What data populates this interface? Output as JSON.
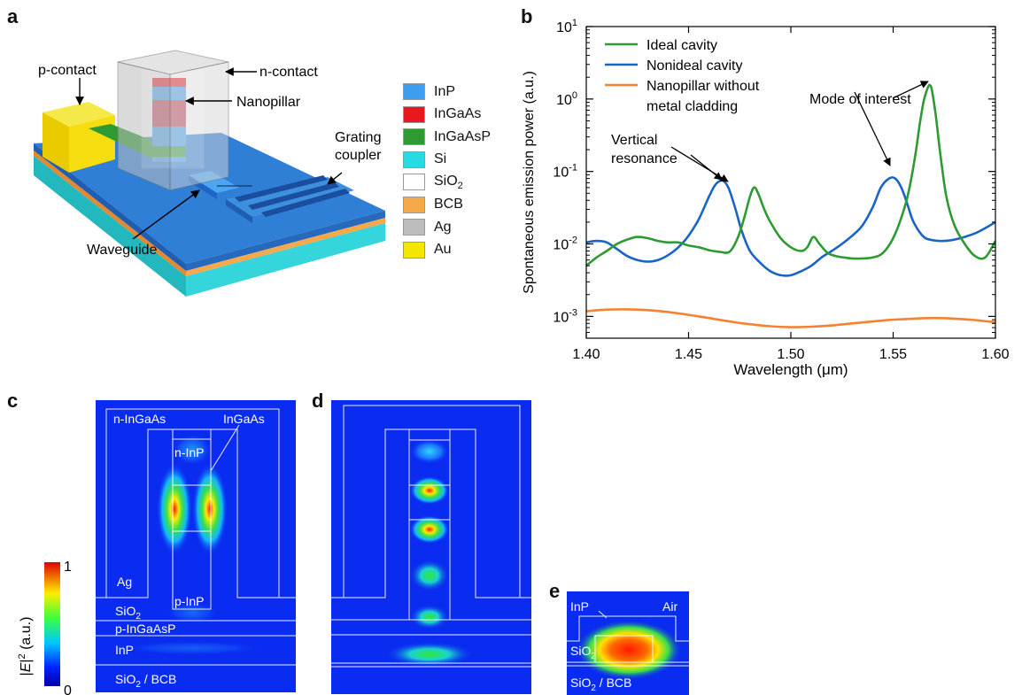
{
  "panels": {
    "a": "a",
    "b": "b",
    "c": "c",
    "d": "d",
    "e": "e"
  },
  "panel_a": {
    "labels": {
      "p_contact": "p-contact",
      "n_contact": "n-contact",
      "nanopillar": "Nanopillar",
      "grating_line1": "Grating",
      "grating_line2": "coupler",
      "waveguide": "Waveguide"
    },
    "materials": [
      {
        "name": "InP",
        "sub": "",
        "color": "#3d9ef0"
      },
      {
        "name": "InGaAs",
        "sub": "",
        "color": "#e8181e"
      },
      {
        "name": "InGaAsP",
        "sub": "",
        "color": "#2e9a32"
      },
      {
        "name": "Si",
        "sub": "",
        "color": "#27dbe2"
      },
      {
        "name": "SiO",
        "sub": "2",
        "color": "#ffffff"
      },
      {
        "name": "BCB",
        "sub": "",
        "color": "#f5a94a"
      },
      {
        "name": "Ag",
        "sub": "",
        "color": "#bdbdbd"
      },
      {
        "name": "Au",
        "sub": "",
        "color": "#f5e600"
      }
    ]
  },
  "chart_data": {
    "type": "line",
    "xlabel_pre": "Wavelength (",
    "xlabel_unit": "μm",
    "xlabel_post": ")",
    "ylabel": "Spontaneous emission power (a.u.)",
    "xlim": [
      1.4,
      1.6
    ],
    "ylim": [
      0.0005,
      10
    ],
    "yscale": "log",
    "x_ticks": [
      "1.40",
      "1.45",
      "1.50",
      "1.55",
      "1.60"
    ],
    "x_tick_values": [
      1.4,
      1.45,
      1.5,
      1.55,
      1.6
    ],
    "y_tick_exponents": [
      -3,
      -2,
      -1,
      0,
      1
    ],
    "y_tick_base": "10",
    "legend_position": "top-left",
    "series": [
      {
        "name": "Ideal cavity",
        "color": "#2e9a32",
        "x": [
          1.4,
          1.405,
          1.41,
          1.415,
          1.42,
          1.425,
          1.43,
          1.435,
          1.44,
          1.445,
          1.45,
          1.455,
          1.46,
          1.465,
          1.47,
          1.474,
          1.477,
          1.48,
          1.482,
          1.484,
          1.487,
          1.49,
          1.495,
          1.5,
          1.505,
          1.508,
          1.511,
          1.514,
          1.518,
          1.522,
          1.526,
          1.53,
          1.535,
          1.54,
          1.545,
          1.55,
          1.555,
          1.558,
          1.561,
          1.563,
          1.565,
          1.567,
          1.568,
          1.569,
          1.571,
          1.573,
          1.576,
          1.58,
          1.585,
          1.59,
          1.595,
          1.6
        ],
        "y": [
          0.005,
          0.0065,
          0.008,
          0.01,
          0.0115,
          0.0125,
          0.012,
          0.011,
          0.0105,
          0.0105,
          0.0095,
          0.009,
          0.0082,
          0.0078,
          0.0078,
          0.012,
          0.022,
          0.045,
          0.06,
          0.05,
          0.03,
          0.02,
          0.012,
          0.009,
          0.008,
          0.009,
          0.0125,
          0.01,
          0.0075,
          0.0068,
          0.0065,
          0.0063,
          0.0063,
          0.0065,
          0.0075,
          0.012,
          0.028,
          0.06,
          0.18,
          0.45,
          0.95,
          1.45,
          1.55,
          1.3,
          0.55,
          0.18,
          0.045,
          0.018,
          0.01,
          0.0068,
          0.0065,
          0.011
        ]
      },
      {
        "name": "Nonideal cavity",
        "color": "#1a63c7",
        "x": [
          1.4,
          1.405,
          1.41,
          1.415,
          1.42,
          1.425,
          1.43,
          1.435,
          1.44,
          1.445,
          1.45,
          1.455,
          1.46,
          1.463,
          1.466,
          1.468,
          1.47,
          1.473,
          1.476,
          1.48,
          1.485,
          1.49,
          1.495,
          1.5,
          1.505,
          1.51,
          1.515,
          1.52,
          1.525,
          1.53,
          1.535,
          1.54,
          1.544,
          1.548,
          1.551,
          1.554,
          1.557,
          1.56,
          1.565,
          1.57,
          1.575,
          1.58,
          1.585,
          1.59,
          1.595,
          1.6
        ],
        "y": [
          0.0105,
          0.011,
          0.0105,
          0.0085,
          0.0068,
          0.006,
          0.0057,
          0.006,
          0.007,
          0.009,
          0.013,
          0.022,
          0.045,
          0.065,
          0.075,
          0.07,
          0.055,
          0.03,
          0.015,
          0.008,
          0.0055,
          0.0042,
          0.0037,
          0.0037,
          0.0042,
          0.005,
          0.0065,
          0.008,
          0.01,
          0.013,
          0.018,
          0.032,
          0.06,
          0.08,
          0.08,
          0.06,
          0.035,
          0.02,
          0.0125,
          0.0112,
          0.011,
          0.0115,
          0.0125,
          0.014,
          0.0165,
          0.02
        ]
      },
      {
        "name": "Nanopillar without metal cladding",
        "name_line1": "Nanopillar without",
        "name_line2": "metal cladding",
        "color": "#f58231",
        "x": [
          1.4,
          1.41,
          1.42,
          1.43,
          1.44,
          1.45,
          1.46,
          1.47,
          1.48,
          1.49,
          1.5,
          1.51,
          1.52,
          1.53,
          1.54,
          1.55,
          1.56,
          1.57,
          1.58,
          1.59,
          1.6
        ],
        "y": [
          0.00118,
          0.00124,
          0.00125,
          0.00122,
          0.00115,
          0.00105,
          0.00095,
          0.00085,
          0.00078,
          0.00073,
          0.00071,
          0.00072,
          0.00075,
          0.0008,
          0.00085,
          0.0009,
          0.00093,
          0.00095,
          0.00093,
          0.00089,
          0.00083
        ]
      }
    ],
    "annotations": {
      "vertical_line1": "Vertical",
      "vertical_line2": "resonance",
      "mode_of_interest": "Mode of interest"
    }
  },
  "panel_c": {
    "labels": {
      "n_ingaas": "n-InGaAs",
      "ingaas": "InGaAs",
      "n_inp": "n-InP",
      "ag": "Ag",
      "p_inp": "p-InP",
      "sio2_main": "SiO",
      "sio2_sub": "2",
      "p_ingaasp": "p-InGaAsP",
      "inp": "InP",
      "sio2bcb_main": "SiO",
      "sio2bcb_sub": "2",
      "sio2bcb_rest": " / BCB"
    },
    "colorbar": {
      "max": "1",
      "min": "0",
      "label_pre": "|",
      "label_E": "E",
      "label_post": "|",
      "label_sup": "2",
      "label_unit": " (a.u.)"
    }
  },
  "panel_e": {
    "labels": {
      "inp": "InP",
      "air": "Air",
      "sio2_main": "SiO",
      "sio2_sub": "2",
      "sio2bcb_main": "SiO",
      "sio2bcb_sub": "2",
      "sio2bcb_rest": " / BCB"
    }
  }
}
